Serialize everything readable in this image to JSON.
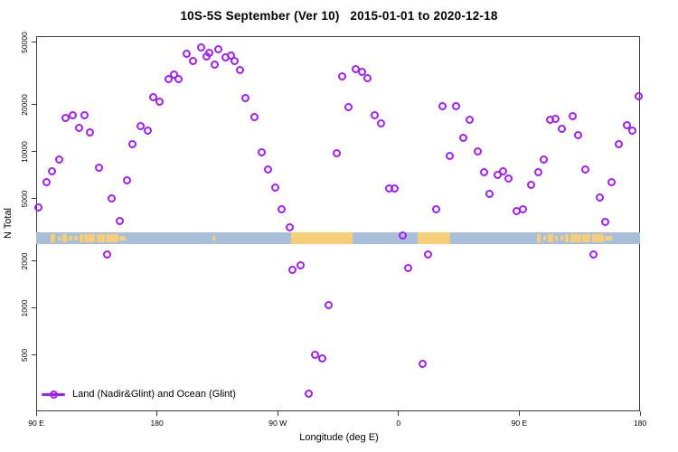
{
  "chart_data": {
    "type": "scatter",
    "title": "10S-5S September (Ver 10)   2015-01-01 to 2020-12-18",
    "xlabel": "Longitude (deg E)",
    "ylabel": "N Total",
    "grid": false,
    "legend": [
      {
        "label": "Land (Nadir&Glint) and Ocean (Glint)",
        "marker": "open-circle-on-line",
        "position": "bottom-left-inside"
      }
    ],
    "colors": {
      "marker": "#a020f0",
      "ocean_band": "#a9bed9",
      "land_band": "#f7cf7a",
      "axis": "#3c3c3c",
      "text": "#000000"
    },
    "x_axis": {
      "note": "longitude axis wraps eastward from 90E through 180, 90W, 0, back to 180; stored as continuous 90..540 deg",
      "range": [
        90,
        540
      ],
      "ticks": [
        {
          "pos": 90,
          "label": "90 E"
        },
        {
          "pos": 180,
          "label": "180"
        },
        {
          "pos": 270,
          "label": "90 W"
        },
        {
          "pos": 360,
          "label": "0"
        },
        {
          "pos": 450,
          "label": "90 E"
        },
        {
          "pos": 540,
          "label": "180"
        }
      ]
    },
    "y_axis": {
      "scale": "log",
      "range": [
        219,
        54800
      ],
      "ticks": [
        {
          "value": 500,
          "label": "500"
        },
        {
          "value": 1000,
          "label": "1000"
        },
        {
          "value": 2000,
          "label": "2000"
        },
        {
          "value": 5000,
          "label": "5000"
        },
        {
          "value": 10000,
          "label": "10000"
        },
        {
          "value": 20000,
          "label": "20000"
        },
        {
          "value": 50000,
          "label": "50000"
        }
      ]
    },
    "map_band": {
      "description": "coastline strip for the 10S-5S latitude belt drawn across the plot",
      "value_range": [
        2570,
        3060
      ],
      "land_segments": [
        {
          "from": 101,
          "to": 104,
          "kind": "patch"
        },
        {
          "from": 106,
          "to": 108,
          "kind": "fleck"
        },
        {
          "from": 109.5,
          "to": 113,
          "kind": "patch"
        },
        {
          "from": 114.5,
          "to": 117,
          "kind": "fleck"
        },
        {
          "from": 118.5,
          "to": 121,
          "kind": "fleck"
        },
        {
          "from": 122,
          "to": 125,
          "kind": "patch"
        },
        {
          "from": 126,
          "to": 134,
          "kind": "patch"
        },
        {
          "from": 135,
          "to": 141,
          "kind": "patch"
        },
        {
          "from": 142,
          "to": 151,
          "kind": "patch"
        },
        {
          "from": 152,
          "to": 157,
          "kind": "fleck"
        },
        {
          "from": 221.5,
          "to": 223.5,
          "kind": "fleck"
        },
        {
          "from": 280,
          "to": 325.5,
          "kind": "solid"
        },
        {
          "from": 374,
          "to": 398.5,
          "kind": "solid"
        },
        {
          "from": 463,
          "to": 466,
          "kind": "patch"
        },
        {
          "from": 468,
          "to": 470,
          "kind": "fleck"
        },
        {
          "from": 471.5,
          "to": 475,
          "kind": "patch"
        },
        {
          "from": 476.5,
          "to": 479,
          "kind": "fleck"
        },
        {
          "from": 480.5,
          "to": 483,
          "kind": "fleck"
        },
        {
          "from": 484,
          "to": 487,
          "kind": "patch"
        },
        {
          "from": 488,
          "to": 496,
          "kind": "patch"
        },
        {
          "from": 497,
          "to": 503,
          "kind": "patch"
        },
        {
          "from": 504,
          "to": 513,
          "kind": "patch"
        },
        {
          "from": 514,
          "to": 519,
          "kind": "fleck"
        }
      ]
    },
    "series": [
      {
        "name": "Land (Nadir&Glint) and Ocean (Glint)",
        "marker": "open-circle",
        "points": [
          [
            92,
            4380
          ],
          [
            98,
            6370
          ],
          [
            102,
            7450
          ],
          [
            107,
            8870
          ],
          [
            112,
            16400
          ],
          [
            117,
            17100
          ],
          [
            122,
            14200
          ],
          [
            126,
            17100
          ],
          [
            130,
            13300
          ],
          [
            137,
            7870
          ],
          [
            143,
            2190
          ],
          [
            146,
            5000
          ],
          [
            152,
            3590
          ],
          [
            158,
            6530
          ],
          [
            162,
            11100
          ],
          [
            168,
            14600
          ],
          [
            173,
            13600
          ],
          [
            177,
            22200
          ],
          [
            182,
            20800
          ],
          [
            189,
            29000
          ],
          [
            193,
            31000
          ],
          [
            196,
            29000
          ],
          [
            202,
            42100
          ],
          [
            207,
            37900
          ],
          [
            213,
            46100
          ],
          [
            217,
            40500
          ],
          [
            219,
            43100
          ],
          [
            223,
            35800
          ],
          [
            226,
            45000
          ],
          [
            231,
            39900
          ],
          [
            235,
            40900
          ],
          [
            238,
            37900
          ],
          [
            242,
            33100
          ],
          [
            246,
            21900
          ],
          [
            253,
            16600
          ],
          [
            258,
            9870
          ],
          [
            263,
            7660
          ],
          [
            268,
            5860
          ],
          [
            273,
            4260
          ],
          [
            279,
            3270
          ],
          [
            281,
            1750
          ],
          [
            287,
            1870
          ],
          [
            293,
            282
          ],
          [
            298,
            500
          ],
          [
            303,
            480
          ],
          [
            308,
            1050
          ],
          [
            314,
            9730
          ],
          [
            318,
            30200
          ],
          [
            323,
            19200
          ],
          [
            328,
            33600
          ],
          [
            333,
            32200
          ],
          [
            337,
            29400
          ],
          [
            342,
            17000
          ],
          [
            347,
            15100
          ],
          [
            353,
            5790
          ],
          [
            357,
            5790
          ],
          [
            363,
            2900
          ],
          [
            367,
            1800
          ],
          [
            378,
            440
          ],
          [
            382,
            2190
          ],
          [
            388,
            4260
          ],
          [
            393,
            19500
          ],
          [
            398,
            9350
          ],
          [
            403,
            19500
          ],
          [
            408,
            12200
          ],
          [
            413,
            15900
          ],
          [
            419,
            9990
          ],
          [
            424,
            7360
          ],
          [
            428,
            5350
          ],
          [
            434,
            7060
          ],
          [
            438,
            7450
          ],
          [
            442,
            6700
          ],
          [
            448,
            4150
          ],
          [
            453,
            4260
          ],
          [
            459,
            6180
          ],
          [
            464,
            7360
          ],
          [
            468,
            8870
          ],
          [
            473,
            15900
          ],
          [
            477,
            16300
          ],
          [
            482,
            14100
          ],
          [
            490,
            16800
          ],
          [
            494,
            12700
          ],
          [
            499,
            7660
          ],
          [
            505,
            2190
          ],
          [
            510,
            5070
          ],
          [
            514,
            3580
          ],
          [
            519,
            6360
          ],
          [
            524,
            11100
          ],
          [
            530,
            14700
          ],
          [
            534,
            13600
          ],
          [
            539,
            22500
          ]
        ]
      }
    ]
  }
}
